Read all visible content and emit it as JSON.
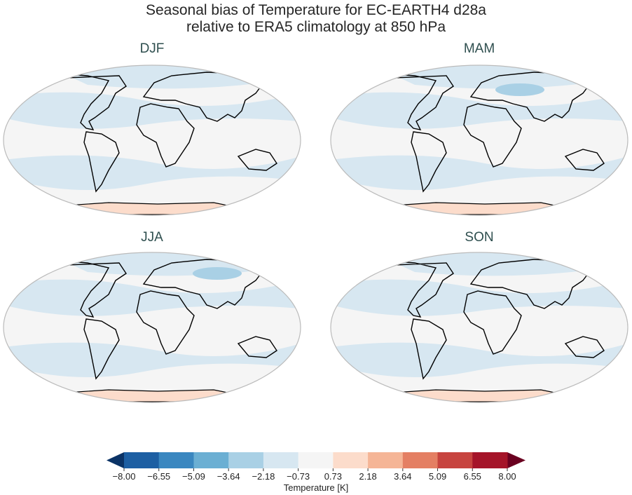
{
  "title_line1": "Seasonal bias of Temperature for EC-EARTH4 d28a",
  "title_line2": "relative to ERA5 climatology at 850 hPa",
  "panels": [
    {
      "label": "DJF"
    },
    {
      "label": "MAM"
    },
    {
      "label": "JJA"
    },
    {
      "label": "SON"
    }
  ],
  "colorbar": {
    "label": "Temperature [K]",
    "ticks": [
      "−8.00",
      "−6.55",
      "−5.09",
      "−3.64",
      "−2.18",
      "−0.73",
      "0.73",
      "2.18",
      "3.64",
      "5.09",
      "6.55",
      "8.00"
    ],
    "colors": [
      "#1d5fa3",
      "#3a87c0",
      "#6bafd3",
      "#a9d0e5",
      "#d7e7f1",
      "#f5f5f5",
      "#fcdccb",
      "#f5b596",
      "#e47f63",
      "#c7443f",
      "#a51429"
    ],
    "under_color": "#0b3366",
    "over_color": "#6a0020",
    "extend": "both"
  }
}
